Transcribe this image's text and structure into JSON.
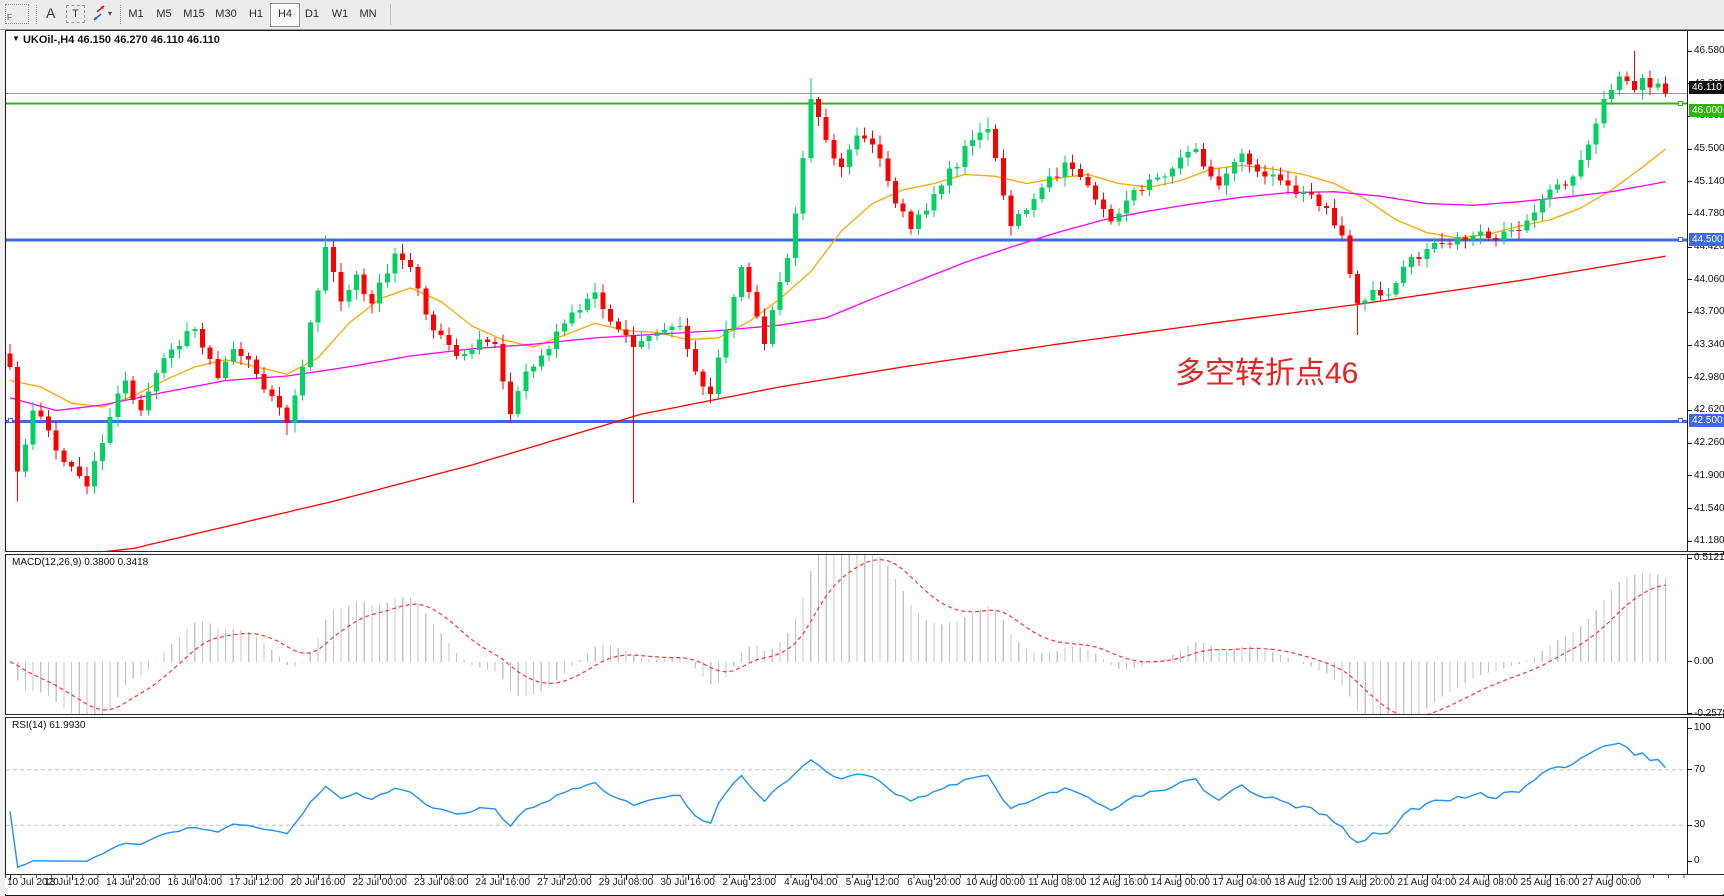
{
  "toolbar": {
    "icons": [
      {
        "name": "indicator-frame-icon",
        "label": "F"
      },
      {
        "name": "font-tool-icon",
        "label": "A"
      },
      {
        "name": "text-label-tool-icon",
        "label": "T"
      },
      {
        "name": "arrows-tool-icon",
        "label": ""
      }
    ],
    "dropdown_caret": "▾",
    "timeframes": [
      "M1",
      "M5",
      "M15",
      "M30",
      "H1",
      "H4",
      "D1",
      "W1",
      "MN"
    ],
    "active_timeframe": "H4"
  },
  "chart": {
    "collapse_caret": "▼",
    "title": "UKOil-,H4  46.150 46.270 46.110 46.110",
    "symbol": "UKOil-",
    "period": "H4",
    "quote": {
      "open": "46.150",
      "high": "46.270",
      "low": "46.110",
      "close": "46.110"
    },
    "annotation": {
      "text": "多空转折点46",
      "color": "#e62222"
    },
    "price_axis_labels": [
      "46.580",
      "46.220",
      "45.860",
      "45.500",
      "45.140",
      "44.780",
      "44.420",
      "44.060",
      "43.700",
      "43.340",
      "42.980",
      "42.620",
      "42.260",
      "41.900",
      "41.540",
      "41.180"
    ],
    "badges": [
      {
        "value": "46.110",
        "color": "#111111",
        "name": "bid-price-badge"
      },
      {
        "value": "46.000",
        "color": "#2fb30e",
        "name": "green-level-badge"
      },
      {
        "value": "44.500",
        "color": "#3d6adf",
        "name": "blue-level-badge-upper"
      },
      {
        "value": "42.500",
        "color": "#3d6adf",
        "name": "blue-level-badge-lower"
      }
    ],
    "hlines": [
      {
        "price": 46.0,
        "color": "#2fb30e",
        "width": 2
      },
      {
        "price": 44.5,
        "color": "#3d6adf",
        "width": 3
      },
      {
        "price": 42.5,
        "color": "#3d6adf",
        "width": 3
      }
    ],
    "bid_line": {
      "price": 46.11,
      "color": "#9a9a9a"
    }
  },
  "macd_panel": {
    "label": "MACD(12,26,9) 0.3800 0.3418",
    "axis_labels": [
      "0.5121",
      "0.00",
      "-0.2578"
    ],
    "axis_values": [
      0.5121,
      0.0,
      -0.2578
    ]
  },
  "rsi_panel": {
    "label": "RSI(14) 61.9930",
    "axis_labels": [
      "100",
      "70",
      "30",
      "0"
    ],
    "axis_values": [
      100,
      70,
      30,
      0
    ],
    "level_lines": [
      70,
      30
    ]
  },
  "time_axis": {
    "labels": [
      "10 Jul 2020",
      "13 Jul 12:00",
      "14 Jul 20:00",
      "16 Jul 04:00",
      "17 Jul 12:00",
      "20 Jul 16:00",
      "22 Jul 00:00",
      "23 Jul 08:00",
      "24 Jul 16:00",
      "27 Jul 20:00",
      "29 Jul 08:00",
      "30 Jul 16:00",
      "2 Aug 23:00",
      "4 Aug 04:00",
      "5 Aug 12:00",
      "6 Aug 20:00",
      "10 Aug 00:00",
      "11 Aug 08:00",
      "12 Aug 16:00",
      "14 Aug 00:00",
      "17 Aug 04:00",
      "18 Aug 12:00",
      "19 Aug 20:00",
      "21 Aug 04:00",
      "24 Aug 08:00",
      "25 Aug 16:00",
      "27 Aug 00:00"
    ]
  },
  "chart_data": {
    "type": "candlestick",
    "title": "UKOil- H4",
    "price_ylim": [
      41.18,
      46.58
    ],
    "candlestick": {
      "n": 216,
      "first_open": 43.25,
      "up_color": "#00d25f",
      "down_color": "#ff0000",
      "close_anchors": [
        [
          0,
          43.1
        ],
        [
          1,
          41.95
        ],
        [
          3,
          42.62
        ],
        [
          5,
          42.4
        ],
        [
          7,
          42.05
        ],
        [
          10,
          41.78
        ],
        [
          13,
          42.55
        ],
        [
          15,
          42.95
        ],
        [
          17,
          42.62
        ],
        [
          20,
          43.2
        ],
        [
          24,
          43.52
        ],
        [
          27,
          42.98
        ],
        [
          29,
          43.3
        ],
        [
          31,
          43.18
        ],
        [
          33,
          42.85
        ],
        [
          36,
          42.48
        ],
        [
          38,
          43.1
        ],
        [
          41,
          44.42
        ],
        [
          43,
          43.82
        ],
        [
          45,
          44.12
        ],
        [
          47,
          43.8
        ],
        [
          50,
          44.35
        ],
        [
          52,
          44.2
        ],
        [
          55,
          43.5
        ],
        [
          58,
          43.22
        ],
        [
          61,
          43.4
        ],
        [
          63,
          43.35
        ],
        [
          65,
          42.58
        ],
        [
          67,
          43.05
        ],
        [
          70,
          43.3
        ],
        [
          73,
          43.7
        ],
        [
          76,
          43.92
        ],
        [
          78,
          43.6
        ],
        [
          81,
          43.32
        ],
        [
          84,
          43.48
        ],
        [
          87,
          43.55
        ],
        [
          89,
          43.05
        ],
        [
          91,
          42.8
        ],
        [
          95,
          44.2
        ],
        [
          98,
          43.35
        ],
        [
          101,
          44.3
        ],
        [
          103,
          45.4
        ],
        [
          104,
          46.05
        ],
        [
          106,
          45.6
        ],
        [
          108,
          45.3
        ],
        [
          110,
          45.65
        ],
        [
          112,
          45.55
        ],
        [
          115,
          44.9
        ],
        [
          117,
          44.62
        ],
        [
          121,
          45.1
        ],
        [
          125,
          45.6
        ],
        [
          127,
          45.72
        ],
        [
          130,
          44.65
        ],
        [
          133,
          44.95
        ],
        [
          137,
          45.35
        ],
        [
          140,
          45.1
        ],
        [
          143,
          44.7
        ],
        [
          146,
          45.05
        ],
        [
          150,
          45.2
        ],
        [
          154,
          45.5
        ],
        [
          157,
          45.1
        ],
        [
          160,
          45.45
        ],
        [
          163,
          45.2
        ],
        [
          166,
          45.1
        ],
        [
          169,
          45.0
        ],
        [
          171,
          44.85
        ],
        [
          173,
          44.55
        ],
        [
          175,
          43.8
        ],
        [
          177,
          43.95
        ],
        [
          179,
          43.9
        ],
        [
          181,
          44.2
        ],
        [
          184,
          44.4
        ],
        [
          187,
          44.45
        ],
        [
          190,
          44.55
        ],
        [
          193,
          44.5
        ],
        [
          196,
          44.6
        ],
        [
          199,
          44.95
        ],
        [
          202,
          45.1
        ],
        [
          205,
          45.55
        ],
        [
          207,
          46.05
        ],
        [
          208,
          46.15
        ],
        [
          209,
          46.3
        ],
        [
          210,
          46.25
        ],
        [
          211,
          46.15
        ],
        [
          212,
          46.28
        ],
        [
          213,
          46.18
        ],
        [
          214,
          46.22
        ],
        [
          215,
          46.11
        ]
      ],
      "wick_highs": [
        [
          41,
          44.55
        ],
        [
          104,
          46.28
        ],
        [
          127,
          45.85
        ],
        [
          211,
          46.58
        ]
      ],
      "wick_lows": [
        [
          1,
          41.62
        ],
        [
          10,
          41.7
        ],
        [
          36,
          42.35
        ],
        [
          65,
          42.48
        ],
        [
          81,
          41.6
        ],
        [
          91,
          42.7
        ],
        [
          130,
          44.55
        ],
        [
          175,
          43.45
        ]
      ]
    },
    "moving_averages": [
      {
        "name": "ma-fast",
        "color": "#ffa500",
        "anchors": [
          [
            0,
            42.95
          ],
          [
            4,
            42.88
          ],
          [
            8,
            42.7
          ],
          [
            12,
            42.66
          ],
          [
            16,
            42.78
          ],
          [
            20,
            42.95
          ],
          [
            24,
            43.1
          ],
          [
            28,
            43.18
          ],
          [
            32,
            43.1
          ],
          [
            36,
            43.02
          ],
          [
            40,
            43.2
          ],
          [
            44,
            43.58
          ],
          [
            48,
            43.85
          ],
          [
            52,
            43.97
          ],
          [
            56,
            43.82
          ],
          [
            60,
            43.55
          ],
          [
            64,
            43.4
          ],
          [
            68,
            43.32
          ],
          [
            72,
            43.45
          ],
          [
            76,
            43.58
          ],
          [
            80,
            43.5
          ],
          [
            84,
            43.48
          ],
          [
            88,
            43.4
          ],
          [
            92,
            43.42
          ],
          [
            96,
            43.6
          ],
          [
            100,
            43.85
          ],
          [
            104,
            44.15
          ],
          [
            108,
            44.6
          ],
          [
            112,
            44.9
          ],
          [
            116,
            45.05
          ],
          [
            120,
            45.12
          ],
          [
            124,
            45.22
          ],
          [
            128,
            45.2
          ],
          [
            132,
            45.12
          ],
          [
            136,
            45.18
          ],
          [
            140,
            45.22
          ],
          [
            144,
            45.12
          ],
          [
            148,
            45.08
          ],
          [
            152,
            45.15
          ],
          [
            156,
            45.28
          ],
          [
            160,
            45.32
          ],
          [
            164,
            45.28
          ],
          [
            168,
            45.22
          ],
          [
            172,
            45.12
          ],
          [
            176,
            44.95
          ],
          [
            180,
            44.72
          ],
          [
            184,
            44.58
          ],
          [
            188,
            44.52
          ],
          [
            192,
            44.56
          ],
          [
            196,
            44.65
          ],
          [
            200,
            44.72
          ],
          [
            204,
            44.85
          ],
          [
            208,
            45.05
          ],
          [
            212,
            45.3
          ],
          [
            215,
            45.5
          ]
        ]
      },
      {
        "name": "ma-medium",
        "color": "#ff00ff",
        "anchors": [
          [
            0,
            42.76
          ],
          [
            6,
            42.62
          ],
          [
            12,
            42.68
          ],
          [
            20,
            42.82
          ],
          [
            28,
            42.95
          ],
          [
            36,
            43.0
          ],
          [
            44,
            43.1
          ],
          [
            52,
            43.22
          ],
          [
            60,
            43.3
          ],
          [
            68,
            43.35
          ],
          [
            76,
            43.42
          ],
          [
            84,
            43.46
          ],
          [
            92,
            43.5
          ],
          [
            100,
            43.56
          ],
          [
            106,
            43.64
          ],
          [
            112,
            43.85
          ],
          [
            118,
            44.05
          ],
          [
            124,
            44.25
          ],
          [
            130,
            44.42
          ],
          [
            136,
            44.58
          ],
          [
            142,
            44.72
          ],
          [
            148,
            44.82
          ],
          [
            154,
            44.9
          ],
          [
            160,
            44.97
          ],
          [
            166,
            45.02
          ],
          [
            172,
            45.03
          ],
          [
            178,
            44.98
          ],
          [
            184,
            44.9
          ],
          [
            190,
            44.88
          ],
          [
            196,
            44.92
          ],
          [
            202,
            44.97
          ],
          [
            208,
            45.03
          ],
          [
            215,
            45.14
          ]
        ]
      },
      {
        "name": "ma-slow",
        "color": "#ff0000",
        "anchors": [
          [
            0,
            40.95
          ],
          [
            16,
            41.1
          ],
          [
            42,
            41.62
          ],
          [
            60,
            42.02
          ],
          [
            82,
            42.58
          ],
          [
            100,
            42.88
          ],
          [
            116,
            43.1
          ],
          [
            136,
            43.35
          ],
          [
            156,
            43.58
          ],
          [
            176,
            43.8
          ],
          [
            196,
            44.05
          ],
          [
            215,
            44.32
          ]
        ]
      }
    ],
    "macd": {
      "params": [
        12,
        26,
        9
      ],
      "main_value": 0.38,
      "signal_value": 0.3418,
      "hist_color": "#c4c4c4",
      "signal_color": "#ff3333",
      "ylim": [
        -0.2578,
        0.5121
      ]
    },
    "rsi": {
      "period": 14,
      "last_value": 61.993,
      "color": "#1e90ff",
      "levels": [
        70,
        30
      ],
      "ylim": [
        0,
        100
      ]
    }
  }
}
